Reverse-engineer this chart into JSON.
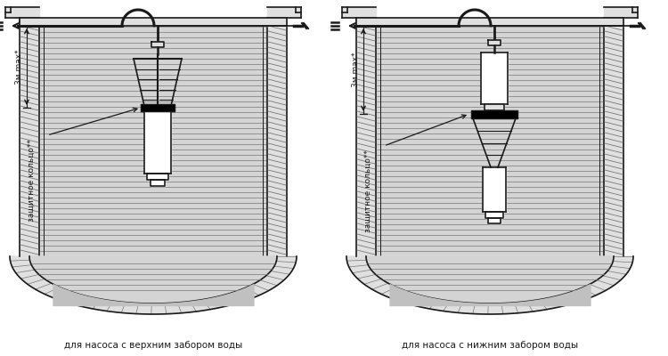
{
  "bg_color": "#ffffff",
  "line_color": "#1a1a1a",
  "title_left": "для насоса с верхним забором воды",
  "title_right": "для насоса с нижним забором воды",
  "label_3m_left": "3м max*",
  "label_3m_right": "3м max*",
  "label_ring_left": "защитное кольцо**",
  "label_ring_right": "защитное кольцо**",
  "font_size_title": 7.5,
  "font_size_label": 6.5,
  "wall_hatch_color": "#777777",
  "water_line_color": "#999999",
  "wall_fill": "#e0e0e0",
  "water_fill": "#d4d4d4"
}
